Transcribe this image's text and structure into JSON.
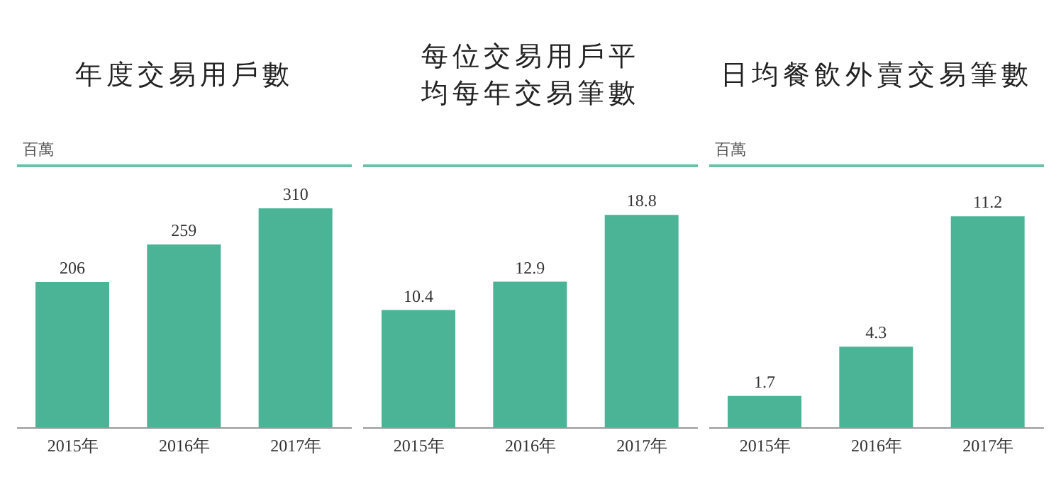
{
  "chart_data": [
    {
      "type": "bar",
      "title": "年度交易用戶數",
      "ylabel": "百萬",
      "categories": [
        "2015年",
        "2016年",
        "2017年"
      ],
      "values": [
        206,
        259,
        310
      ],
      "color": "#4cb496",
      "data_labels": true,
      "tick_labels": "x",
      "grid": false,
      "legend": false
    },
    {
      "type": "bar",
      "title": "每位交易用戶平均每年交易筆數",
      "categories": [
        "2015年",
        "2016年",
        "2017年"
      ],
      "values": [
        10.4,
        12.9,
        18.8
      ],
      "color": "#4cb496",
      "data_labels": true,
      "tick_labels": "x",
      "grid": false,
      "legend": false
    },
    {
      "type": "bar",
      "title": "日均餐飲外賣交易筆數",
      "ylabel": "百萬",
      "categories": [
        "2015年",
        "2016年",
        "2017年"
      ],
      "values": [
        1.7,
        4.3,
        11.2
      ],
      "color": "#4cb496",
      "data_labels": true,
      "tick_labels": "x",
      "grid": false,
      "legend": false
    }
  ]
}
